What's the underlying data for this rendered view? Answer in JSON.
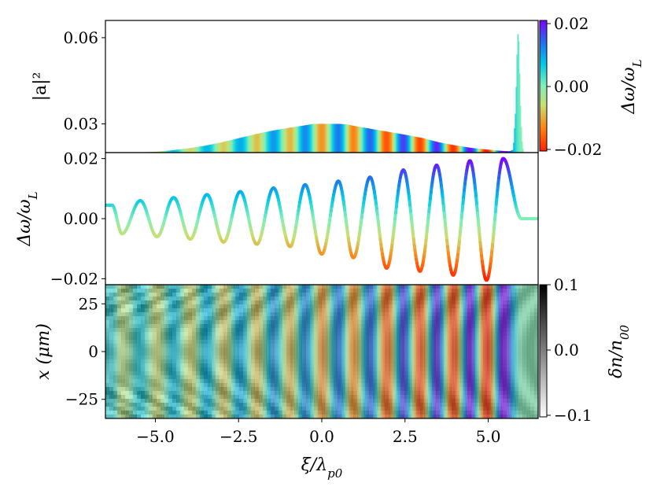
{
  "figure": {
    "shared_xlabel": "ξ/λ",
    "shared_xlabel_sub": "p0"
  },
  "chart_data": [
    {
      "type": "area",
      "id": "top-panel",
      "ylabel": "|a|²",
      "xlim": [
        -6.5,
        6.5
      ],
      "ylim": [
        0.02,
        0.066
      ],
      "yticks": [
        0.03,
        0.06
      ],
      "ytick_labels": [
        "0.03",
        "0.06"
      ],
      "fill_colored_by": "Δω/ωL",
      "envelope": {
        "x": [
          -6.5,
          -5.5,
          -5.0,
          -4.5,
          -4.0,
          -3.5,
          -3.0,
          -2.5,
          -2.0,
          -1.5,
          -1.0,
          -0.5,
          -0.25,
          0.0,
          0.5,
          0.75,
          1.0,
          1.5,
          2.0,
          2.5,
          3.0,
          3.5,
          4.0,
          4.5,
          5.0,
          5.5,
          5.65,
          5.75,
          5.82,
          5.88,
          5.92,
          5.95,
          6.0,
          6.05,
          6.1,
          6.5
        ],
        "y": [
          0.02,
          0.02,
          0.0203,
          0.0208,
          0.0215,
          0.0224,
          0.0236,
          0.025,
          0.0264,
          0.0276,
          0.0286,
          0.0295,
          0.03,
          0.03,
          0.03,
          0.0298,
          0.0292,
          0.0282,
          0.0272,
          0.0262,
          0.0251,
          0.0236,
          0.0225,
          0.0216,
          0.021,
          0.0205,
          0.0205,
          0.021,
          0.035,
          0.062,
          0.058,
          0.04,
          0.025,
          0.02,
          0.02,
          0.02
        ]
      }
    },
    {
      "type": "line",
      "id": "middle-panel",
      "ylabel": "Δω/ω",
      "ylabel_sub": "L",
      "xlim": [
        -6.5,
        6.5
      ],
      "ylim": [
        -0.022,
        0.022
      ],
      "yticks": [
        -0.02,
        0.0,
        0.02
      ],
      "ytick_labels": [
        "−0.02",
        "0.00",
        "0.02"
      ],
      "oscillation": {
        "period_xi": 1.0,
        "crest_xi": [
          -6.3,
          -5.45,
          -4.45,
          -3.45,
          -2.45,
          -1.45,
          -0.5,
          0.5,
          1.45,
          2.45,
          3.45,
          4.45,
          5.45
        ],
        "crest_value": [
          0.0045,
          0.006,
          0.007,
          0.008,
          0.009,
          0.0102,
          0.0113,
          0.0125,
          0.0138,
          0.0162,
          0.0178,
          0.0193,
          0.02
        ],
        "trough_xi": [
          -6.0,
          -4.95,
          -3.95,
          -2.95,
          -1.95,
          -0.95,
          0.0,
          0.95,
          1.95,
          2.95,
          3.95,
          4.95
        ],
        "trough_value": [
          -0.005,
          -0.006,
          -0.0068,
          -0.0078,
          -0.0085,
          -0.0093,
          -0.0118,
          -0.013,
          -0.0165,
          -0.0175,
          -0.0188,
          -0.0205
        ],
        "tail_xi": 6.0,
        "tail_value": 0.0
      }
    },
    {
      "type": "heatmap",
      "id": "bottom-panel",
      "ylabel": "x (μm)",
      "xlim": [
        -6.5,
        6.5
      ],
      "ylim": [
        -35,
        35
      ],
      "yticks": [
        -25,
        0,
        25
      ],
      "ytick_labels": [
        "−25",
        "0",
        "25"
      ],
      "xticks": [
        -5.0,
        -2.5,
        0.0,
        2.5,
        5.0
      ],
      "xtick_labels": [
        "−5.0",
        "−2.5",
        "0.0",
        "2.5",
        "5.0"
      ]
    }
  ],
  "colorbars": [
    {
      "id": "colorbar-frequency",
      "label": "Δω/ω",
      "label_sub": "L",
      "ticks": [
        0.02,
        0.0,
        -0.02
      ],
      "tick_labels": [
        "0.02",
        "0.00",
        "−0.02"
      ],
      "range": [
        -0.02,
        0.02
      ],
      "colormap": "rainbow",
      "colors": [
        "#ff2200",
        "#ff7f10",
        "#c8e070",
        "#7ff0b8",
        "#00c8e8",
        "#2070f0",
        "#8000ff"
      ]
    },
    {
      "id": "colorbar-density",
      "label": "δn/n",
      "label_sub": "00",
      "ticks": [
        0.1,
        0.0,
        -0.1
      ],
      "tick_labels": [
        "0.1",
        "0.0",
        "−0.1"
      ],
      "range": [
        -0.1,
        0.1
      ],
      "colormap": "gray_r",
      "colors": [
        "#ffffff",
        "#000000"
      ]
    }
  ]
}
